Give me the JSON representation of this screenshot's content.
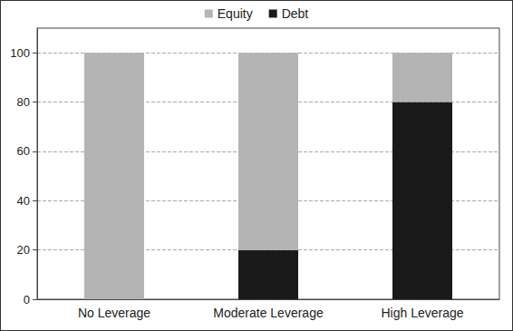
{
  "chart_data": {
    "type": "bar",
    "stacked": true,
    "categories": [
      "No Leverage",
      "Moderate Leverage",
      "High Leverage"
    ],
    "series": [
      {
        "name": "Equity",
        "color": "#b4b4b4",
        "values": [
          100,
          80,
          20
        ]
      },
      {
        "name": "Debt",
        "color": "#1a1a1a",
        "values": [
          0,
          20,
          80
        ]
      }
    ],
    "ylim": [
      0,
      110
    ],
    "yticks": [
      0,
      20,
      40,
      60,
      80,
      100
    ],
    "grid": true,
    "legend": "top"
  }
}
